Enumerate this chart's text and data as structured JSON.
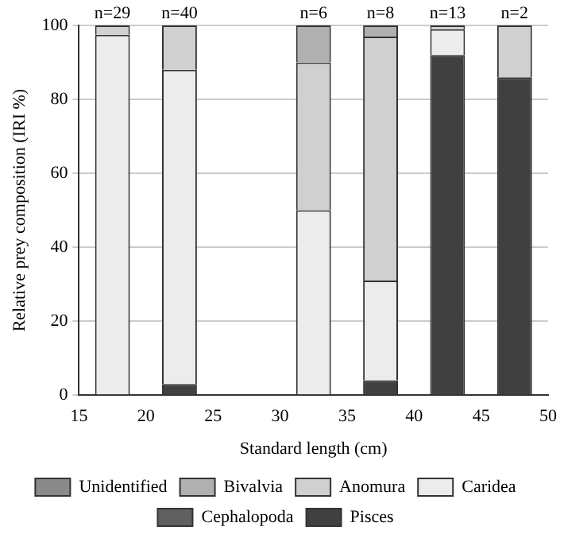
{
  "chart_data": {
    "type": "bar",
    "stacked": true,
    "xlabel": "Standard length (cm)",
    "ylabel": "Relative prey composition (IRI %)",
    "x": [
      17.5,
      22.5,
      32.5,
      37.5,
      42.5,
      47.5
    ],
    "series": [
      {
        "name": "Pisces",
        "color": "#404040",
        "values": [
          0,
          3,
          0,
          4,
          92,
          86
        ]
      },
      {
        "name": "Cephalopoda",
        "color": "#606060",
        "values": [
          0,
          0,
          0,
          0,
          0,
          0
        ]
      },
      {
        "name": "Caridea",
        "color": "#ececec",
        "values": [
          97.5,
          85,
          50,
          27,
          7,
          0
        ]
      },
      {
        "name": "Anomura",
        "color": "#d0d0d0",
        "values": [
          2.5,
          12,
          40,
          66,
          1,
          14
        ]
      },
      {
        "name": "Bivalvia",
        "color": "#b0b0b0",
        "values": [
          0,
          0,
          10,
          3,
          0,
          0
        ]
      },
      {
        "name": "Unidentified",
        "color": "#8a8a8a",
        "values": [
          0,
          0,
          0,
          0,
          0,
          0
        ]
      }
    ],
    "xlim": [
      15,
      50
    ],
    "xticks": [
      15,
      20,
      25,
      30,
      35,
      40,
      45,
      50
    ],
    "ylim": [
      0,
      100
    ],
    "yticks": [
      0,
      20,
      40,
      60,
      80,
      100
    ],
    "grid": "y",
    "legend": "bottom",
    "annotations": [
      {
        "text": "n=29",
        "x": 17.5,
        "y": 100
      },
      {
        "text": "n=40",
        "x": 22.5,
        "y": 100
      },
      {
        "text": "n=6",
        "x": 32.5,
        "y": 100
      },
      {
        "text": "n=8",
        "x": 37.5,
        "y": 100
      },
      {
        "text": "n=13",
        "x": 42.5,
        "y": 100
      },
      {
        "text": "n=2",
        "x": 47.5,
        "y": 100
      }
    ]
  }
}
